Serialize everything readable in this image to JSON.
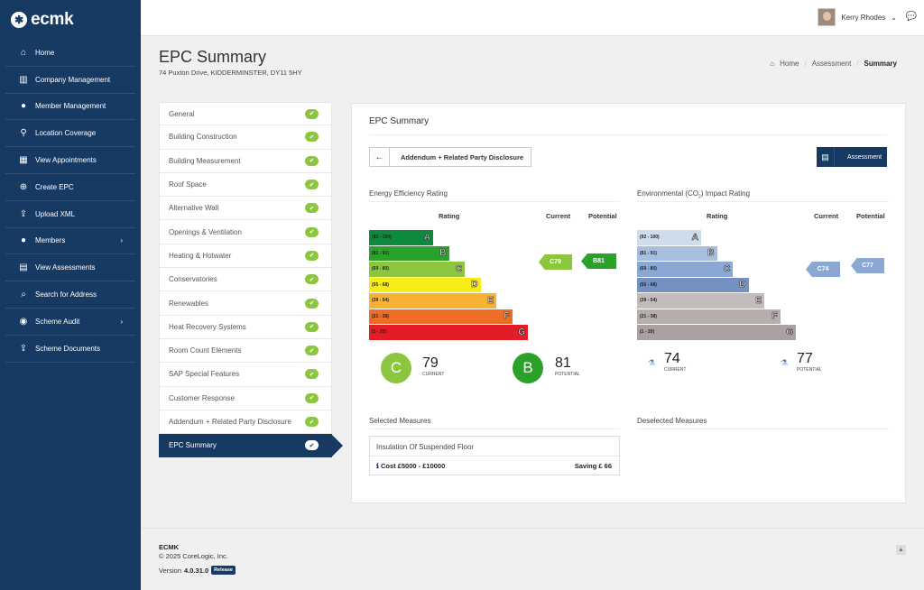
{
  "brand": {
    "name": "ecmk"
  },
  "sidebar": {
    "items": [
      {
        "label": "Home",
        "icon": "home-icon"
      },
      {
        "label": "Company Management",
        "icon": "building-icon"
      },
      {
        "label": "Member Management",
        "icon": "user-icon"
      },
      {
        "label": "Location Coverage",
        "icon": "map-marker-icon"
      },
      {
        "label": "View Appointments",
        "icon": "calendar-icon"
      },
      {
        "label": "Create EPC",
        "icon": "plus-circle-icon"
      },
      {
        "label": "Upload XML",
        "icon": "upload-icon"
      },
      {
        "label": "Members",
        "icon": "users-icon",
        "has_submenu": true
      },
      {
        "label": "View Assessments",
        "icon": "file-icon"
      },
      {
        "label": "Search for Address",
        "icon": "search-icon"
      },
      {
        "label": "Scheme Audit",
        "icon": "eye-icon",
        "has_submenu": true
      },
      {
        "label": "Scheme Documents",
        "icon": "upload-icon"
      }
    ]
  },
  "header": {
    "user_name": "Kerry Rhodes"
  },
  "page": {
    "title": "EPC Summary",
    "address": "74 Puxton Drive, KIDDERMINSTER, DY11 5HY",
    "breadcrumb": {
      "home": "Home",
      "middle": "Assessment",
      "current": "Summary"
    }
  },
  "steps": [
    "General",
    "Building Construction",
    "Building Measurement",
    "Roof Space",
    "Alternative Wall",
    "Openings & Ventilation",
    "Heating & Hotwater",
    "Conservatories",
    "Renewables",
    "Heat Recovery Systems",
    "Room Count Elements",
    "SAP Special Features",
    "Customer Response",
    "Addendum + Related Party Disclosure",
    "EPC Summary"
  ],
  "active_step": "EPC Summary",
  "card": {
    "title": "EPC Summary",
    "back_button": "Addendum + Related Party Disclosure",
    "assessment_button": "Assessment"
  },
  "energy": {
    "title": "Energy Efficiency Rating",
    "col_rating": "Rating",
    "col_current": "Current",
    "col_potential": "Potential",
    "bands": [
      {
        "range": "(92 - 100)",
        "letter": "A",
        "color": "#0e8a3f"
      },
      {
        "range": "(81 - 91)",
        "letter": "B",
        "color": "#2aa22a"
      },
      {
        "range": "(69 - 80)",
        "letter": "C",
        "color": "#8cc63f"
      },
      {
        "range": "(55 - 68)",
        "letter": "D",
        "color": "#f7ec16"
      },
      {
        "range": "(39 - 54)",
        "letter": "E",
        "color": "#f8b133"
      },
      {
        "range": "(21 - 38)",
        "letter": "F",
        "color": "#ee6d25"
      },
      {
        "range": "(1 - 20)",
        "letter": "G",
        "color": "#e21d26"
      }
    ],
    "current_tag": "C79",
    "potential_tag": "B81",
    "current_letter": "C",
    "current_value": "79",
    "current_label": "CURRENT",
    "potential_letter": "B",
    "potential_value": "81",
    "potential_label": "POTENTIAL",
    "current_color": "#8cc63f",
    "potential_color": "#2aa22a"
  },
  "environment": {
    "title_pre": "Environmental (CO",
    "title_sub": "2",
    "title_post": ") Impact Rating",
    "col_rating": "Rating",
    "col_current": "Current",
    "col_potential": "Potential",
    "bands": [
      {
        "range": "(92 - 100)",
        "letter": "A",
        "color": "#cfdcec"
      },
      {
        "range": "(81 - 91)",
        "letter": "B",
        "color": "#a7bfdf"
      },
      {
        "range": "(69 - 80)",
        "letter": "C",
        "color": "#8ba7d3"
      },
      {
        "range": "(55 - 68)",
        "letter": "D",
        "color": "#7591c1"
      },
      {
        "range": "(39 - 54)",
        "letter": "E",
        "color": "#c4bcbc"
      },
      {
        "range": "(21 - 38)",
        "letter": "F",
        "color": "#b6adad"
      },
      {
        "range": "(1 - 20)",
        "letter": "G",
        "color": "#aaa2a2"
      }
    ],
    "current_tag": "C74",
    "potential_tag": "C77",
    "tag_color": "#8ba7d3",
    "current_value": "74",
    "current_label": "CURRENT",
    "potential_value": "77",
    "potential_label": "POTENTIAL"
  },
  "measures": {
    "selected_title": "Selected Measures",
    "deselected_title": "Deselected Measures",
    "selected": [
      {
        "name": "Insulation Of Suspended Floor",
        "cost": "Cost £5000 - £10000",
        "saving": "Saving £ 66"
      }
    ]
  },
  "footer": {
    "brand": "ECMK",
    "copyright": "© 2025 CoreLogic, Inc.",
    "version_prefix": "Version",
    "version": "4.0.31.0",
    "badge": "Release"
  }
}
